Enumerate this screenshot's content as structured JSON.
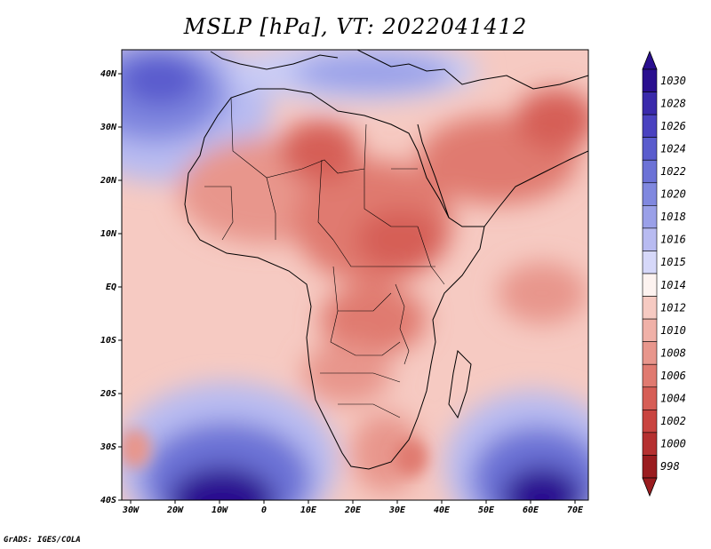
{
  "title": "MSLP [hPa], VT: 2022041412",
  "credit": "GrADS: IGES/COLA",
  "map": {
    "lon_ticks": [
      "30W",
      "20W",
      "10W",
      "0",
      "10E",
      "20E",
      "30E",
      "40E",
      "50E",
      "60E",
      "70E"
    ],
    "lat_ticks": [
      "40N",
      "30N",
      "20N",
      "10N",
      "EQ",
      "10S",
      "20S",
      "30S",
      "40S"
    ]
  },
  "colorbar": {
    "levels": [
      "1030",
      "1028",
      "1026",
      "1024",
      "1022",
      "1020",
      "1018",
      "1016",
      "1015",
      "1014",
      "1012",
      "1010",
      "1008",
      "1006",
      "1004",
      "1002",
      "1000",
      "998"
    ],
    "colors": [
      "#2a0f8f",
      "#3a2aab",
      "#4a42c0",
      "#5a5ccd",
      "#6c72d6",
      "#8088df",
      "#9aa0e8",
      "#b8bbf1",
      "#d6d8f9",
      "#fdf3f0",
      "#f6cac2",
      "#f0b1a8",
      "#e8968c",
      "#e07a70",
      "#d65e56",
      "#c94440",
      "#b53030",
      "#9a1c1f"
    ]
  }
}
